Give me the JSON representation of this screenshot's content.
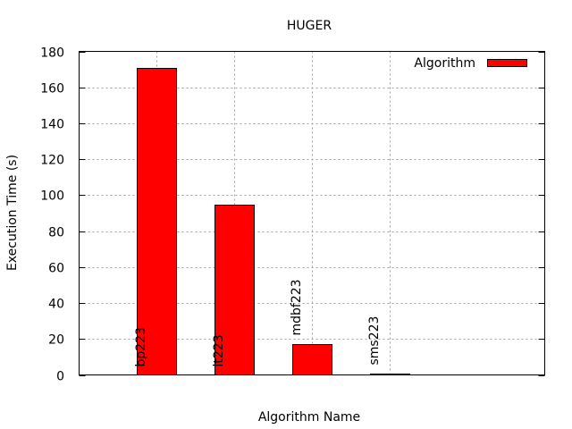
{
  "chart_data": {
    "type": "bar",
    "title": "HUGER",
    "xlabel": "Algorithm Name",
    "ylabel": "Execution Time (s)",
    "ylim": [
      0,
      180
    ],
    "yticks": [
      0,
      20,
      40,
      60,
      80,
      100,
      120,
      140,
      160,
      180
    ],
    "categories": [
      "bp223",
      "lt223",
      "mdbf223",
      "sms223"
    ],
    "series": [
      {
        "name": "Algorithm",
        "values": [
          171,
          94.5,
          17,
          0.5
        ],
        "color": "#ff0000"
      }
    ],
    "grid": true,
    "legend_position": "top-right"
  }
}
